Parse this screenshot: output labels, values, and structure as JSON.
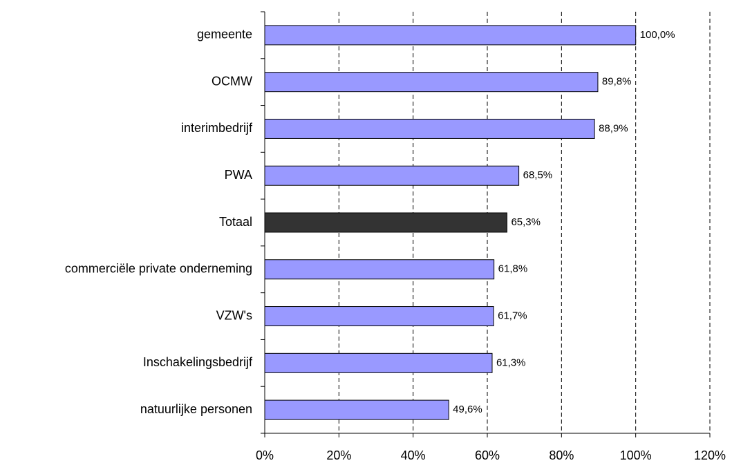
{
  "chart_data": {
    "type": "bar",
    "orientation": "horizontal",
    "categories": [
      "gemeente",
      "OCMW",
      "interimbedrijf",
      "PWA",
      "Totaal",
      "commerciële private onderneming",
      "VZW's",
      "Inschakelingsbedrijf",
      "natuurlijke personen"
    ],
    "values": [
      100.0,
      89.8,
      88.9,
      68.5,
      65.3,
      61.8,
      61.7,
      61.3,
      49.6
    ],
    "value_labels": [
      "100,0%",
      "89,8%",
      "88,9%",
      "68,5%",
      "65,3%",
      "61,8%",
      "61,7%",
      "61,3%",
      "49,6%"
    ],
    "colors": [
      "#9999ff",
      "#9999ff",
      "#9999ff",
      "#9999ff",
      "#333333",
      "#9999ff",
      "#9999ff",
      "#9999ff",
      "#9999ff"
    ],
    "xlim": [
      0,
      120
    ],
    "xticks": [
      {
        "value": 0,
        "label": "0%"
      },
      {
        "value": 20,
        "label": "20%"
      },
      {
        "value": 40,
        "label": "40%"
      },
      {
        "value": 60,
        "label": "60%"
      },
      {
        "value": 80,
        "label": "80%"
      },
      {
        "value": 100,
        "label": "100%"
      },
      {
        "value": 120,
        "label": "120%"
      }
    ],
    "grid": true
  }
}
